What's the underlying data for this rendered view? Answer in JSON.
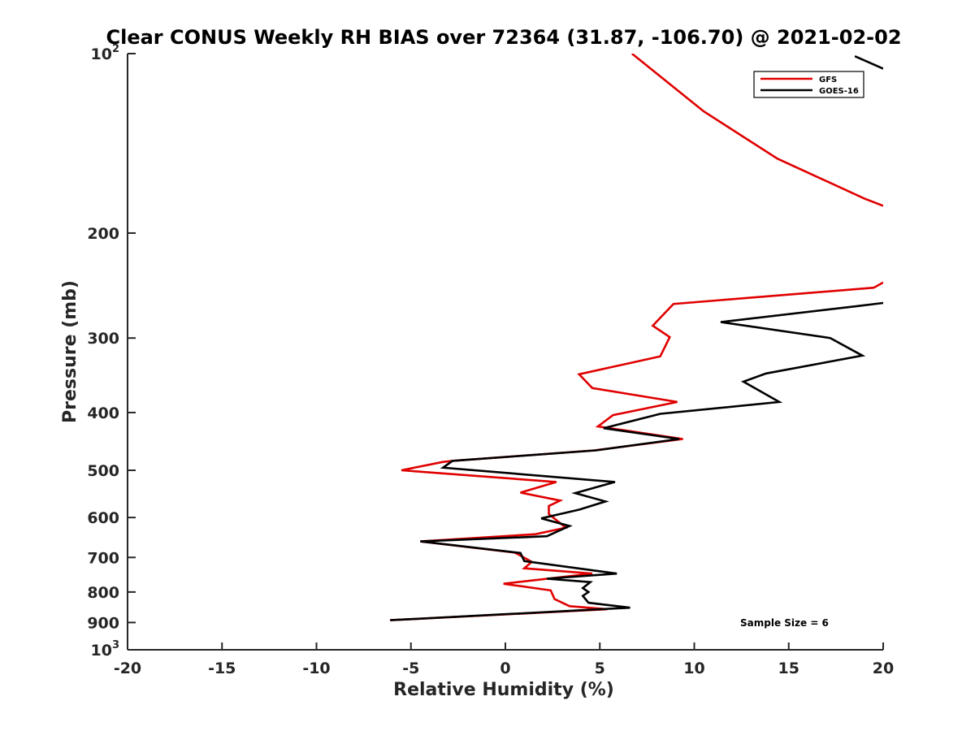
{
  "chart_data": {
    "type": "line",
    "title": "Clear CONUS Weekly RH BIAS over 72364 (31.87, -106.70) @ 2021-02-02",
    "xlabel": "Relative Humidity (%)",
    "ylabel": "Pressure (mb)",
    "xlim": [
      -20,
      20
    ],
    "ylim": [
      1000,
      100
    ],
    "y_scale": "log",
    "y_reversed": true,
    "grid": false,
    "legend_position": "top-right",
    "x_ticks": [
      "-20",
      "-15",
      "-10",
      "-5",
      "0",
      "5",
      "10",
      "15",
      "20"
    ],
    "y_ticks": [
      {
        "value": 100,
        "base": "10",
        "exp": "2"
      },
      {
        "value": 200,
        "label": "200"
      },
      {
        "value": 300,
        "label": "300"
      },
      {
        "value": 400,
        "label": "400"
      },
      {
        "value": 500,
        "label": "500"
      },
      {
        "value": 600,
        "label": "600"
      },
      {
        "value": 700,
        "label": "700"
      },
      {
        "value": 800,
        "label": "800"
      },
      {
        "value": 900,
        "label": "900"
      },
      {
        "value": 1000,
        "base": "10",
        "exp": "3"
      }
    ],
    "annotation": "Sample Size = 6",
    "series": [
      {
        "name": "GFS",
        "color": "#e00000",
        "points": [
          [
            6.7,
            100
          ],
          [
            10.5,
            125
          ],
          [
            14.4,
            150
          ],
          [
            19.0,
            175
          ],
          [
            20.0,
            180
          ],
          [
            null,
            null
          ],
          [
            20.0,
            242
          ],
          [
            19.5,
            247
          ],
          [
            8.9,
            263
          ],
          [
            7.8,
            286
          ],
          [
            8.7,
            299
          ],
          [
            8.2,
            322
          ],
          [
            3.9,
            345
          ],
          [
            4.6,
            364
          ],
          [
            9.1,
            384
          ],
          [
            5.7,
            404
          ],
          [
            4.9,
            422
          ],
          [
            9.4,
            443
          ],
          [
            4.7,
            463
          ],
          [
            -2.8,
            482
          ],
          [
            -3.3,
            484
          ],
          [
            -5.5,
            500
          ],
          [
            2.7,
            523
          ],
          [
            0.8,
            545
          ],
          [
            2.9,
            562
          ],
          [
            2.3,
            574
          ],
          [
            2.3,
            592
          ],
          [
            3.2,
            624
          ],
          [
            1.6,
            640
          ],
          [
            -4.5,
            658
          ],
          [
            0.5,
            687
          ],
          [
            1.4,
            712
          ],
          [
            1.0,
            730
          ],
          [
            4.6,
            745
          ],
          [
            -0.1,
            775
          ],
          [
            2.4,
            795
          ],
          [
            2.6,
            822
          ],
          [
            3.4,
            845
          ],
          [
            5.4,
            855
          ],
          [
            -6.1,
            892
          ]
        ]
      },
      {
        "name": "GOES-16",
        "color": "#000000",
        "points": [
          [
            18.5,
            101
          ],
          [
            20.0,
            106
          ],
          [
            null,
            null
          ],
          [
            20.0,
            262
          ],
          [
            18.7,
            265
          ],
          [
            11.4,
            282
          ],
          [
            17.2,
            300
          ],
          [
            18.9,
            321
          ],
          [
            13.8,
            344
          ],
          [
            12.6,
            355
          ],
          [
            14.5,
            384
          ],
          [
            8.2,
            402
          ],
          [
            5.2,
            425
          ],
          [
            9.2,
            443
          ],
          [
            4.8,
            463
          ],
          [
            -2.8,
            482
          ],
          [
            -3.3,
            495
          ],
          [
            5.8,
            523
          ],
          [
            3.7,
            546
          ],
          [
            5.3,
            564
          ],
          [
            3.9,
            582
          ],
          [
            1.9,
            602
          ],
          [
            3.4,
            620
          ],
          [
            2.2,
            645
          ],
          [
            -4.5,
            658
          ],
          [
            0.8,
            688
          ],
          [
            1.0,
            710
          ],
          [
            5.9,
            745
          ],
          [
            2.2,
            760
          ],
          [
            4.5,
            770
          ],
          [
            4.1,
            788
          ],
          [
            4.4,
            800
          ],
          [
            4.1,
            812
          ],
          [
            4.4,
            834
          ],
          [
            6.6,
            850
          ],
          [
            -6.1,
            892
          ]
        ]
      }
    ]
  }
}
